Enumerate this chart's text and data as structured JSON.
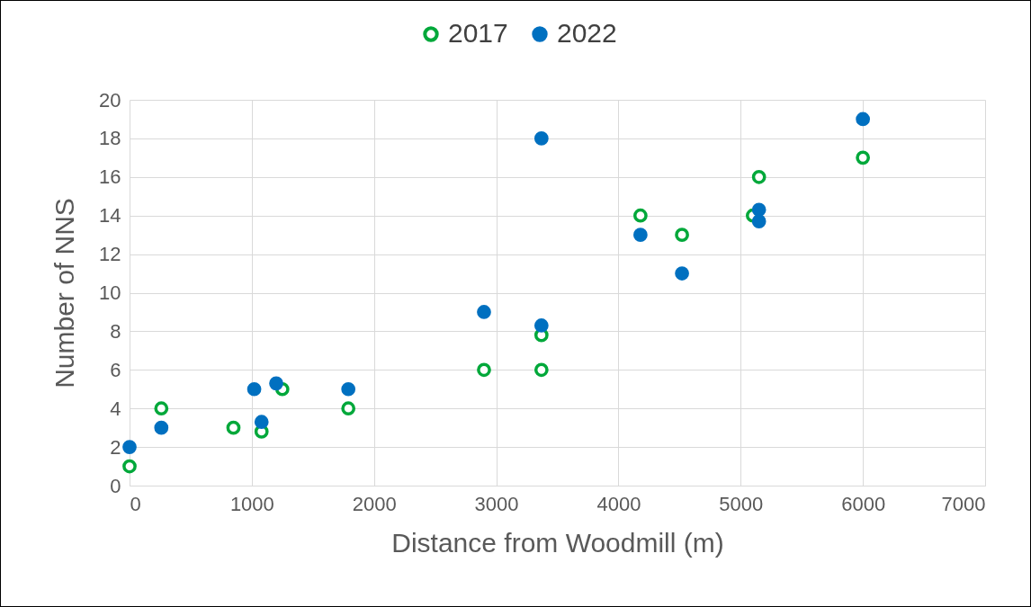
{
  "chart_data": {
    "type": "scatter",
    "xlabel": "Distance from Woodmill (m)",
    "ylabel": "Number of NNS",
    "xlim": [
      0,
      7000
    ],
    "xticks": [
      0,
      1000,
      2000,
      3000,
      4000,
      5000,
      6000,
      7000
    ],
    "ylim": [
      0,
      20
    ],
    "yticks": [
      0,
      2,
      4,
      6,
      8,
      10,
      12,
      14,
      16,
      18,
      20
    ],
    "grid": true,
    "legend": "top",
    "marker": "circle",
    "series": [
      {
        "name": "2017",
        "color": "#00a83a",
        "x": [
          0,
          260,
          850,
          1080,
          1250,
          1790,
          2900,
          3370,
          3370,
          4180,
          4520,
          5100,
          5150,
          6000
        ],
        "values": [
          1,
          4,
          3,
          2.8,
          5,
          4,
          6,
          7.8,
          6,
          14,
          13,
          14,
          16,
          17
        ]
      },
      {
        "name": "2022",
        "color": "#0070c0",
        "x": [
          0,
          260,
          1020,
          1080,
          1200,
          1790,
          2900,
          3370,
          3370,
          4180,
          4520,
          5150,
          5150,
          6000
        ],
        "values": [
          2,
          3,
          5,
          3.3,
          5.3,
          5,
          9,
          18,
          8.3,
          13,
          11,
          14.3,
          13.7,
          19
        ]
      }
    ]
  }
}
